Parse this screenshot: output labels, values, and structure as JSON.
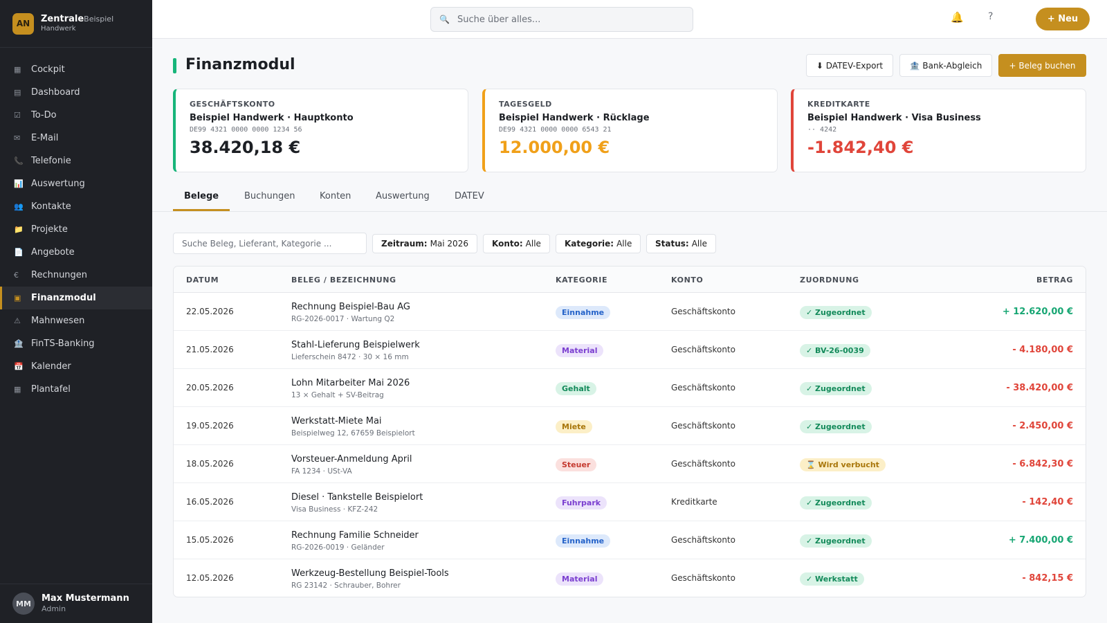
{
  "brand": {
    "logo": "AN",
    "name": "Zentrale",
    "name_suffix": "Beispiel",
    "sub": "Handwerk"
  },
  "nav": [
    {
      "icon": "grid-icon",
      "glyph": "▦",
      "label": "Cockpit"
    },
    {
      "icon": "dashboard-icon",
      "glyph": "▤",
      "label": "Dashboard"
    },
    {
      "icon": "checkbox-icon",
      "glyph": "☑",
      "label": "To-Do"
    },
    {
      "icon": "mail-icon",
      "glyph": "✉",
      "label": "E-Mail"
    },
    {
      "icon": "phone-icon",
      "glyph": "📞",
      "label": "Telefonie"
    },
    {
      "icon": "chart-icon",
      "glyph": "📊",
      "label": "Auswertung"
    },
    {
      "icon": "contacts-icon",
      "glyph": "👥",
      "label": "Kontakte"
    },
    {
      "icon": "folder-icon",
      "glyph": "📁",
      "label": "Projekte"
    },
    {
      "icon": "document-icon",
      "glyph": "📄",
      "label": "Angebote"
    },
    {
      "icon": "euro-icon",
      "glyph": "€",
      "label": "Rechnungen"
    },
    {
      "icon": "finance-icon",
      "glyph": "▣",
      "label": "Finanzmodul",
      "active": true
    },
    {
      "icon": "warning-icon",
      "glyph": "⚠",
      "label": "Mahnwesen"
    },
    {
      "icon": "bank-icon",
      "glyph": "🏦",
      "label": "FinTS-Banking"
    },
    {
      "icon": "calendar-icon",
      "glyph": "📅",
      "label": "Kalender"
    },
    {
      "icon": "board-icon",
      "glyph": "▦",
      "label": "Plantafel"
    }
  ],
  "user": {
    "initials": "MM",
    "name": "Max Mustermann",
    "role": "Admin"
  },
  "topbar": {
    "search_placeholder": "Suche über alles...",
    "bell": "🔔",
    "help": "?",
    "new_label": "+ Neu"
  },
  "page": {
    "title": "Finanzmodul",
    "datev_export": "⬇ DATEV-Export",
    "bank_abgleich": "🏦 Bank-Abgleich",
    "beleg_buchen": "+ Beleg buchen"
  },
  "accounts": [
    {
      "type": "GESCHÄFTSKONTO",
      "name": "Beispiel Handwerk · Hauptkonto",
      "iban": "DE99 4321 0000 0000 1234 56",
      "balance": "38.420,18 €",
      "color": "#17b57a",
      "balance_color": "#1c1f24"
    },
    {
      "type": "TAGESGELD",
      "name": "Beispiel Handwerk · Rücklage",
      "iban": "DE99 4321 0000 0000 6543 21",
      "balance": "12.000,00 €",
      "color": "#f0a019",
      "balance_color": "#f0a019"
    },
    {
      "type": "KREDITKARTE",
      "name": "Beispiel Handwerk · Visa Business",
      "iban": "·· 4242",
      "balance": "-1.842,40 €",
      "color": "#e0453a",
      "balance_color": "#e0453a"
    }
  ],
  "tabs": [
    "Belege",
    "Buchungen",
    "Konten",
    "Auswertung",
    "DATEV"
  ],
  "filters": {
    "search_placeholder": "Suche Beleg, Lieferant, Kategorie ...",
    "chips": [
      {
        "key": "Zeitraum:",
        "value": "Mai 2026"
      },
      {
        "key": "Konto:",
        "value": "Alle"
      },
      {
        "key": "Kategorie:",
        "value": "Alle"
      },
      {
        "key": "Status:",
        "value": "Alle"
      }
    ]
  },
  "table": {
    "headers": [
      "DATUM",
      "BELEG / BEZEICHNUNG",
      "KATEGORIE",
      "KONTO",
      "ZUORDNUNG",
      "BETRAG"
    ],
    "rows": [
      {
        "date": "22.05.2026",
        "title": "Rechnung Beispiel-Bau AG",
        "sub": "RG-2026-0017 · Wartung Q2",
        "category": "Einnahme",
        "account": "Geschäftskonto",
        "assign": "✓ Zugeordnet",
        "amount": "+ 12.620,00 €"
      },
      {
        "date": "21.05.2026",
        "title": "Stahl-Lieferung Beispielwerk",
        "sub": "Lieferschein 8472 · 30 × 16 mm",
        "category": "Material",
        "account": "Geschäftskonto",
        "assign": "✓ BV-26-0039",
        "amount": "- 4.180,00 €"
      },
      {
        "date": "20.05.2026",
        "title": "Lohn Mitarbeiter Mai 2026",
        "sub": "13 × Gehalt + SV-Beitrag",
        "category": "Gehalt",
        "account": "Geschäftskonto",
        "assign": "✓ Zugeordnet",
        "amount": "- 38.420,00 €"
      },
      {
        "date": "19.05.2026",
        "title": "Werkstatt-Miete Mai",
        "sub": "Beispielweg 12, 67659 Beispielort",
        "category": "Miete",
        "account": "Geschäftskonto",
        "assign": "✓ Zugeordnet",
        "amount": "- 2.450,00 €"
      },
      {
        "date": "18.05.2026",
        "title": "Vorsteuer-Anmeldung April",
        "sub": "FA 1234 · USt-VA",
        "category": "Steuer",
        "account": "Geschäftskonto",
        "assign": "⌛ Wird verbucht",
        "amount": "- 6.842,30 €"
      },
      {
        "date": "16.05.2026",
        "title": "Diesel · Tankstelle Beispielort",
        "sub": "Visa Business · KFZ-242",
        "category": "Fuhrpark",
        "account": "Kreditkarte",
        "assign": "✓ Zugeordnet",
        "amount": "- 142,40 €"
      },
      {
        "date": "15.05.2026",
        "title": "Rechnung Familie Schneider",
        "sub": "RG-2026-0019 · Geländer",
        "category": "Einnahme",
        "account": "Geschäftskonto",
        "assign": "✓ Zugeordnet",
        "amount": "+ 7.400,00 €"
      },
      {
        "date": "12.05.2026",
        "title": "Werkzeug-Bestellung Beispiel-Tools",
        "sub": "RG 23142 · Schrauber, Bohrer",
        "category": "Material",
        "account": "Geschäftskonto",
        "assign": "✓ Werkstatt",
        "amount": "- 842,15 €"
      }
    ]
  },
  "colors": {
    "accent": "#c58f1f",
    "positive": "#17a673",
    "negative": "#e0453a",
    "category": {
      "Einnahme": {
        "bg": "#dde9fb",
        "fg": "#2563c9"
      },
      "Material": {
        "bg": "#ece3fb",
        "fg": "#7b3fd0"
      },
      "Gehalt": {
        "bg": "#d8f3e6",
        "fg": "#138a5a"
      },
      "Miete": {
        "bg": "#fcefc7",
        "fg": "#a8760a"
      },
      "Steuer": {
        "bg": "#fbe0de",
        "fg": "#c53a30"
      },
      "Fuhrpark": {
        "bg": "#ece3fb",
        "fg": "#7b3fd0"
      }
    },
    "assign_done": {
      "bg": "#d8f3e6",
      "fg": "#138a5a"
    },
    "assign_pending": {
      "bg": "#fcefc7",
      "fg": "#a8760a"
    }
  }
}
